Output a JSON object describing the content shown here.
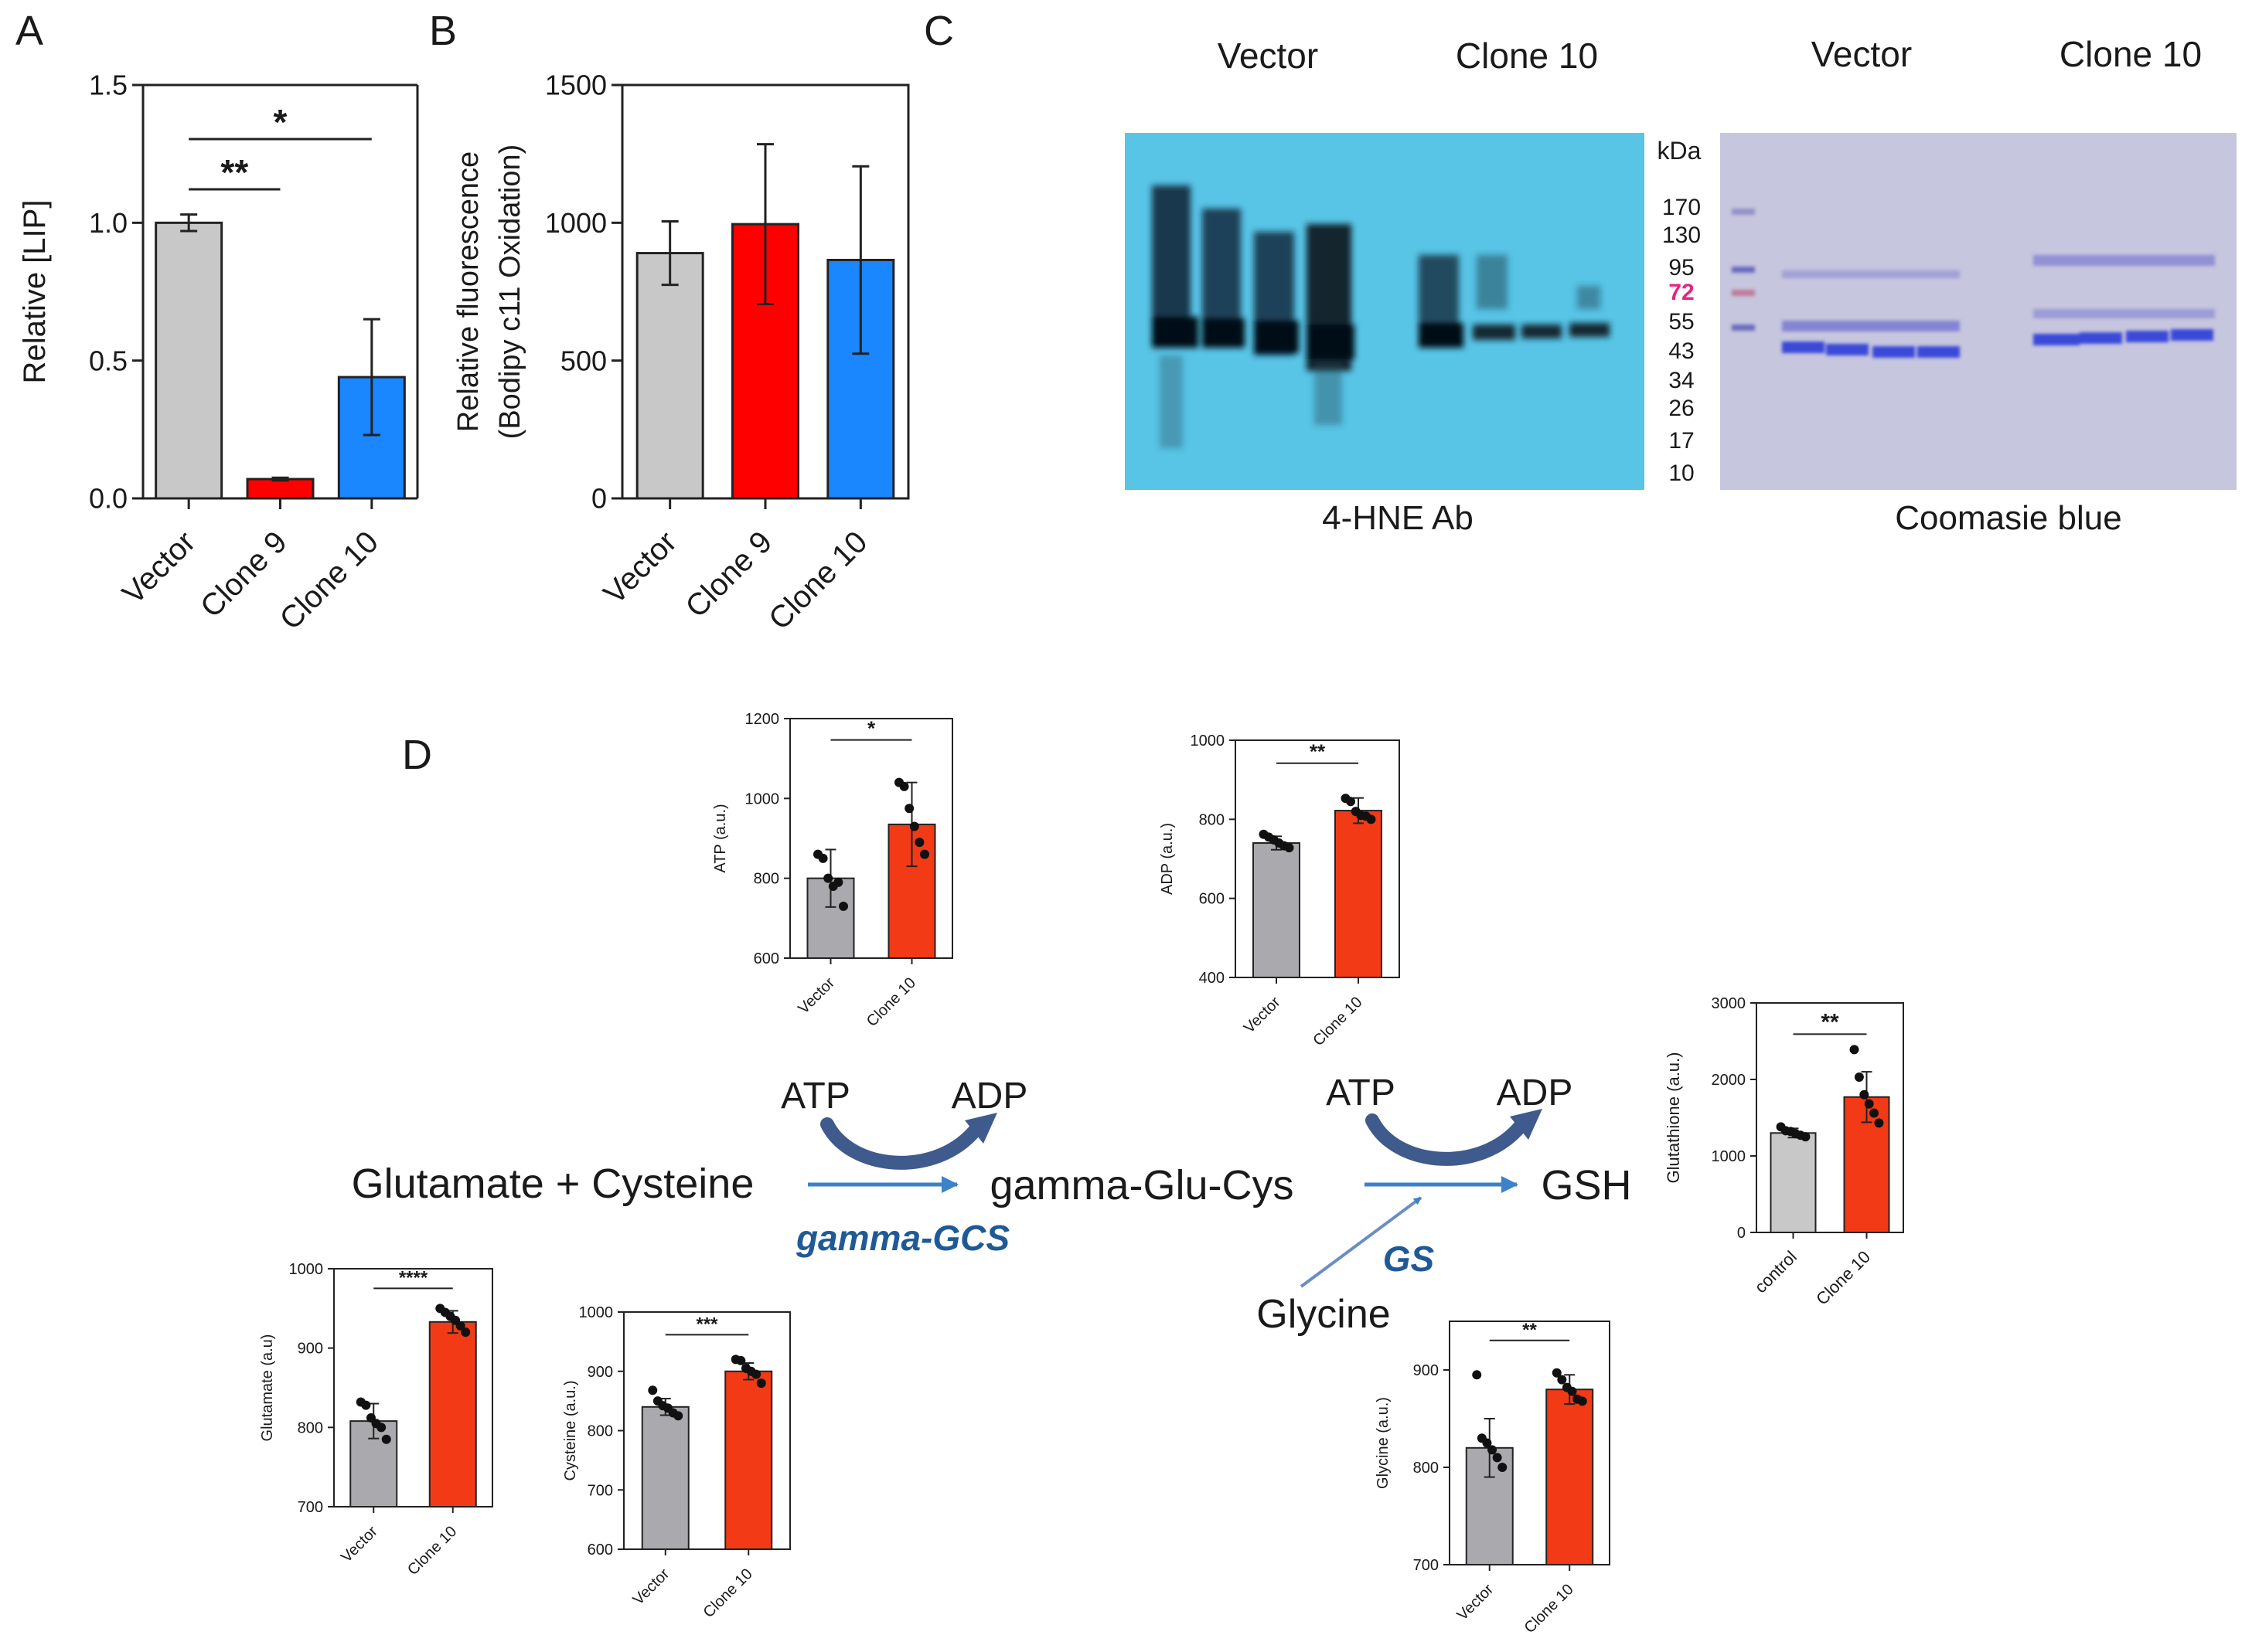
{
  "panel_labels": {
    "a": "A",
    "b": "B",
    "c": "C",
    "d": "D"
  },
  "colors": {
    "grey_light": "#c8c8c8",
    "grey_dark": "#a9a9ae",
    "red": "#ff0000",
    "red_d": "#f23a17",
    "blue": "#1a86ff",
    "arrow_dark": "#3f5a8c",
    "arrow_light": "#3c82c8",
    "enzyme": "#1f5a96",
    "blot_bg": "#58c4e6",
    "gel_bg": "#c6c6de",
    "marker_pink": "#e0287f"
  },
  "chart_data": [
    {
      "id": "A",
      "type": "bar",
      "categories": [
        "Vector",
        "Clone 9",
        "Clone 10"
      ],
      "values": [
        1.0,
        0.07,
        0.44
      ],
      "errors": [
        0.03,
        0.005,
        0.21
      ],
      "colors": [
        "#c8c8c8",
        "#ff0000",
        "#1a86ff"
      ],
      "ylabel": "Relative [LIP]",
      "ylim": [
        0,
        1.5
      ],
      "yticks": [
        0.0,
        0.5,
        1.0,
        1.5
      ],
      "ytick_labels": [
        "0.0",
        "0.5",
        "1.0",
        "1.5"
      ],
      "significance": [
        {
          "from": 0,
          "to": 1,
          "label": "**"
        },
        {
          "from": 0,
          "to": 2,
          "label": "*"
        }
      ]
    },
    {
      "id": "B",
      "type": "bar",
      "categories": [
        "Vector",
        "Clone 9",
        "Clone 10"
      ],
      "values": [
        890,
        995,
        865
      ],
      "errors": [
        115,
        290,
        340
      ],
      "colors": [
        "#c8c8c8",
        "#ff0000",
        "#1a86ff"
      ],
      "ylabel": "Relative fluorescence",
      "ylabel2": "(Bodipy c11 Oxidation)",
      "ylim": [
        0,
        1500
      ],
      "yticks": [
        0,
        500,
        1000,
        1500
      ],
      "ytick_labels": [
        "0",
        "500",
        "1000",
        "1500"
      ]
    },
    {
      "id": "ATP",
      "type": "bar",
      "categories": [
        "Vector",
        "Clone 10"
      ],
      "values": [
        800,
        935
      ],
      "errors": [
        72,
        105
      ],
      "points": [
        [
          860,
          850,
          800,
          780,
          790,
          730
        ],
        [
          1040,
          1030,
          975,
          930,
          890,
          860
        ]
      ],
      "colors": [
        "#a9a9ae",
        "#f23a17"
      ],
      "ylabel": "ATP (a.u.)",
      "ylim": [
        600,
        1200
      ],
      "yticks": [
        600,
        800,
        1000,
        1200
      ],
      "ytick_labels": [
        "600",
        "800",
        "1000",
        "1200"
      ],
      "significance": [
        {
          "from": 0,
          "to": 1,
          "label": "*"
        }
      ]
    },
    {
      "id": "ADP",
      "type": "bar",
      "categories": [
        "Vector",
        "Clone 10"
      ],
      "values": [
        740,
        822
      ],
      "errors": [
        17,
        32
      ],
      "points": [
        [
          762,
          755,
          748,
          740,
          733,
          728
        ],
        [
          853,
          845,
          820,
          810,
          808,
          800
        ]
      ],
      "colors": [
        "#a9a9ae",
        "#f23a17"
      ],
      "ylabel": "ADP (a.u.)",
      "ylim": [
        400,
        1000
      ],
      "yticks": [
        400,
        600,
        800,
        1000
      ],
      "ytick_labels": [
        "400",
        "600",
        "800",
        "1000"
      ],
      "significance": [
        {
          "from": 0,
          "to": 1,
          "label": "**"
        }
      ]
    },
    {
      "id": "Glutathione",
      "type": "bar",
      "categories": [
        "control",
        "Clone 10"
      ],
      "values": [
        1300,
        1770
      ],
      "errors": [
        60,
        330
      ],
      "points": [
        [
          1380,
          1330,
          1320,
          1290,
          1270,
          1250
        ],
        [
          2390,
          2030,
          1800,
          1680,
          1560,
          1430
        ]
      ],
      "colors": [
        "#c8c8c8",
        "#f23a17"
      ],
      "ylabel": "Glutathione (a.u.)",
      "ylim": [
        0,
        3000
      ],
      "yticks": [
        0,
        1000,
        2000,
        3000
      ],
      "ytick_labels": [
        "0",
        "1000",
        "2000",
        "3000"
      ],
      "significance": [
        {
          "from": 0,
          "to": 1,
          "label": "**"
        }
      ]
    },
    {
      "id": "Glutamate",
      "type": "bar",
      "categories": [
        "Vector",
        "Clone 10"
      ],
      "values": [
        808,
        933
      ],
      "errors": [
        22,
        14
      ],
      "points": [
        [
          832,
          828,
          812,
          805,
          800,
          785
        ],
        [
          950,
          945,
          940,
          935,
          928,
          920
        ]
      ],
      "colors": [
        "#a9a9ae",
        "#f23a17"
      ],
      "ylabel": "Glutamate (a.u)",
      "ylim": [
        700,
        1000
      ],
      "yticks": [
        700,
        800,
        900,
        1000
      ],
      "ytick_labels": [
        "700",
        "800",
        "900",
        "1000"
      ],
      "significance": [
        {
          "from": 0,
          "to": 1,
          "label": "****"
        }
      ]
    },
    {
      "id": "Cysteine",
      "type": "bar",
      "categories": [
        "Vector",
        "Clone 10"
      ],
      "values": [
        840,
        900
      ],
      "errors": [
        14,
        14
      ],
      "points": [
        [
          868,
          850,
          842,
          838,
          830,
          825
        ],
        [
          920,
          918,
          905,
          900,
          895,
          880
        ]
      ],
      "colors": [
        "#a9a9ae",
        "#f23a17"
      ],
      "ylabel": "Cysteine (a.u.)",
      "ylim": [
        600,
        1000
      ],
      "yticks": [
        600,
        700,
        800,
        900,
        1000
      ],
      "ytick_labels": [
        "600",
        "700",
        "800",
        "900",
        "1000"
      ],
      "significance": [
        {
          "from": 0,
          "to": 1,
          "label": "***"
        }
      ]
    },
    {
      "id": "Glycine",
      "type": "bar",
      "categories": [
        "Vector",
        "Clone 10"
      ],
      "values": [
        820,
        880
      ],
      "errors": [
        30,
        15
      ],
      "points": [
        [
          895,
          830,
          825,
          818,
          810,
          800
        ],
        [
          897,
          890,
          882,
          878,
          870,
          868
        ]
      ],
      "colors": [
        "#a9a9ae",
        "#f23a17"
      ],
      "ylabel": "Glycine (a.u.)",
      "ylim": [
        700,
        950
      ],
      "yticks": [
        700,
        800,
        900
      ],
      "ytick_labels": [
        "700",
        "800",
        "900"
      ],
      "significance": [
        {
          "from": 0,
          "to": 1,
          "label": "**"
        }
      ]
    }
  ],
  "blot": {
    "left_title_vector": "Vector",
    "left_title_clone": "Clone 10",
    "right_title_vector": "Vector",
    "right_title_clone": "Clone 10",
    "kda_label": "kDa",
    "markers": [
      "170",
      "130",
      "95",
      "72",
      "55",
      "43",
      "34",
      "26",
      "17",
      "10"
    ],
    "left_caption": "4-HNE Ab",
    "right_caption": "Coomasie blue"
  },
  "pathway": {
    "substrates": "Glutamate + Cysteine",
    "intermediate": "gamma-Glu-Cys",
    "product": "GSH",
    "atp1": "ATP",
    "adp1": "ADP",
    "atp2": "ATP",
    "adp2": "ADP",
    "enzyme1": "gamma-GCS",
    "enzyme2": "GS",
    "glycine": "Glycine"
  }
}
